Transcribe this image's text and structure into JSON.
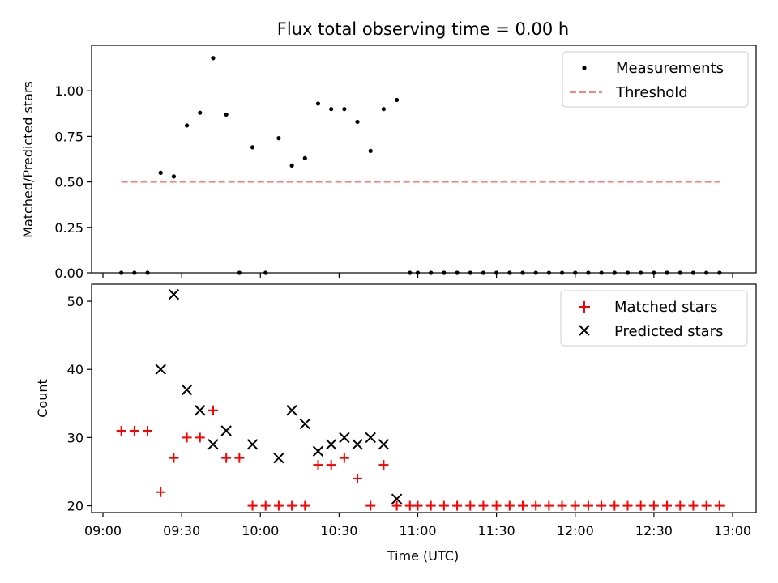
{
  "chart_data": [
    {
      "type": "scatter",
      "title": "Flux total observing time = 0.00 h",
      "ylabel": "Matched/Predicted stars",
      "xlabel": "",
      "ylim": [
        0,
        1.25
      ],
      "xlim": [
        "09:00",
        "13:00"
      ],
      "x_ticks": [
        "09:00",
        "09:30",
        "10:00",
        "10:30",
        "11:00",
        "11:30",
        "12:00",
        "12:30",
        "13:00"
      ],
      "y_ticks": [
        "0.00",
        "0.25",
        "0.50",
        "0.75",
        "1.00"
      ],
      "legend_position": "top-right",
      "series": [
        {
          "name": "Measurements",
          "style": "dot",
          "color": "#000000",
          "x": [
            "09:07",
            "09:12",
            "09:17",
            "09:22",
            "09:27",
            "09:32",
            "09:37",
            "09:42",
            "09:47",
            "09:52",
            "09:57",
            "10:02",
            "10:07",
            "10:12",
            "10:17",
            "10:22",
            "10:27",
            "10:32",
            "10:37",
            "10:42",
            "10:47",
            "10:52",
            "10:57",
            "11:00",
            "11:05",
            "11:10",
            "11:15",
            "11:20",
            "11:25",
            "11:30",
            "11:35",
            "11:40",
            "11:45",
            "11:50",
            "11:55",
            "12:00",
            "12:05",
            "12:10",
            "12:15",
            "12:20",
            "12:25",
            "12:30",
            "12:35",
            "12:40",
            "12:45",
            "12:50",
            "12:55"
          ],
          "y": [
            0,
            0,
            0,
            0.55,
            0.53,
            0.81,
            0.88,
            1.18,
            0.87,
            0,
            0.69,
            0,
            0.74,
            0.59,
            0.63,
            0.93,
            0.9,
            0.9,
            0.83,
            0.67,
            0.9,
            0.95,
            0,
            0,
            0,
            0,
            0,
            0,
            0,
            0,
            0,
            0,
            0,
            0,
            0,
            0,
            0,
            0,
            0,
            0,
            0,
            0,
            0,
            0,
            0,
            0,
            0
          ]
        },
        {
          "name": "Threshold",
          "style": "dashed-line",
          "color": "#ff8080",
          "x": [
            "09:07",
            "12:55"
          ],
          "y": [
            0.5,
            0.5
          ]
        }
      ]
    },
    {
      "type": "scatter",
      "title": "",
      "ylabel": "Count",
      "xlabel": "Time (UTC)",
      "ylim": [
        19,
        52.5
      ],
      "xlim": [
        "09:00",
        "13:00"
      ],
      "x_ticks": [
        "09:00",
        "09:30",
        "10:00",
        "10:30",
        "11:00",
        "11:30",
        "12:00",
        "12:30",
        "13:00"
      ],
      "y_ticks": [
        "20",
        "30",
        "40",
        "50"
      ],
      "legend_position": "top-right",
      "series": [
        {
          "name": "Matched stars",
          "style": "plus",
          "color": "#ff0000",
          "x": [
            "09:07",
            "09:12",
            "09:17",
            "09:22",
            "09:27",
            "09:32",
            "09:37",
            "09:42",
            "09:47",
            "09:52",
            "09:57",
            "10:02",
            "10:07",
            "10:12",
            "10:17",
            "10:22",
            "10:27",
            "10:32",
            "10:37",
            "10:42",
            "10:47",
            "10:52",
            "10:57",
            "11:00",
            "11:05",
            "11:10",
            "11:15",
            "11:20",
            "11:25",
            "11:30",
            "11:35",
            "11:40",
            "11:45",
            "11:50",
            "11:55",
            "12:00",
            "12:05",
            "12:10",
            "12:15",
            "12:20",
            "12:25",
            "12:30",
            "12:35",
            "12:40",
            "12:45",
            "12:50",
            "12:55"
          ],
          "y": [
            31,
            31,
            31,
            22,
            27,
            30,
            30,
            34,
            27,
            27,
            20,
            20,
            20,
            20,
            20,
            26,
            26,
            27,
            24,
            20,
            26,
            20,
            20,
            20,
            20,
            20,
            20,
            20,
            20,
            20,
            20,
            20,
            20,
            20,
            20,
            20,
            20,
            20,
            20,
            20,
            20,
            20,
            20,
            20,
            20,
            20,
            20
          ]
        },
        {
          "name": "Predicted stars",
          "style": "x",
          "color": "#000000",
          "x": [
            "09:22",
            "09:27",
            "09:32",
            "09:37",
            "09:42",
            "09:47",
            "09:57",
            "10:07",
            "10:12",
            "10:17",
            "10:22",
            "10:27",
            "10:32",
            "10:37",
            "10:42",
            "10:47",
            "10:52"
          ],
          "y": [
            40,
            51,
            37,
            34,
            29,
            31,
            29,
            27,
            34,
            32,
            28,
            29,
            30,
            29,
            30,
            29,
            21
          ]
        }
      ]
    }
  ]
}
